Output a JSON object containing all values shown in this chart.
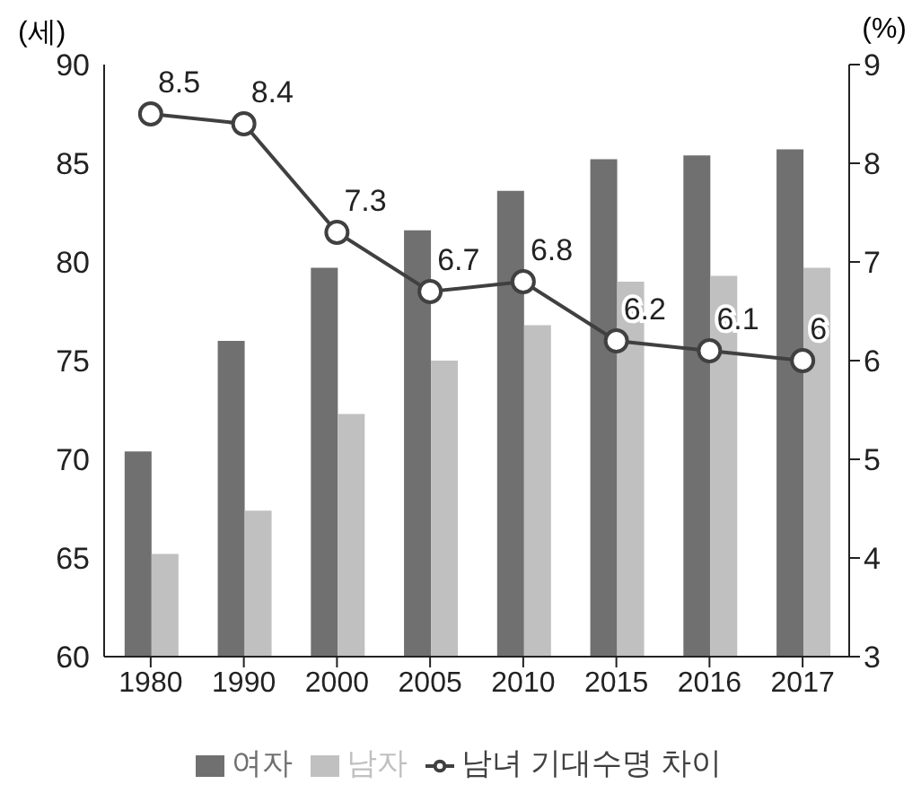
{
  "chart_data": {
    "type": "bar",
    "ylabel": "(세)",
    "y2label": "(%)",
    "categories": [
      "1980",
      "1990",
      "2000",
      "2005",
      "2010",
      "2015",
      "2016",
      "2017"
    ],
    "series": [
      {
        "name": "여자",
        "color": "#707070",
        "values": [
          70.4,
          76.0,
          79.7,
          81.6,
          83.6,
          85.2,
          85.4,
          85.7
        ]
      },
      {
        "name": "남자",
        "color": "#bfc0bf",
        "values": [
          65.2,
          67.4,
          72.3,
          75.0,
          76.8,
          79.0,
          79.3,
          79.7
        ]
      },
      {
        "name": "남녀 기대수명 차이",
        "type": "line",
        "axis": "y2",
        "color": "#404040",
        "marker": "circle",
        "data_labels": true,
        "values": [
          8.5,
          8.4,
          7.3,
          6.7,
          6.8,
          6.2,
          6.1,
          6
        ]
      }
    ],
    "ylim": [
      60,
      90
    ],
    "yticks": [
      60,
      65,
      70,
      75,
      80,
      85,
      90
    ],
    "y2lim": [
      3,
      9
    ],
    "y2ticks": [
      3,
      4,
      5,
      6,
      7,
      8,
      9
    ],
    "legend": "bottom"
  }
}
